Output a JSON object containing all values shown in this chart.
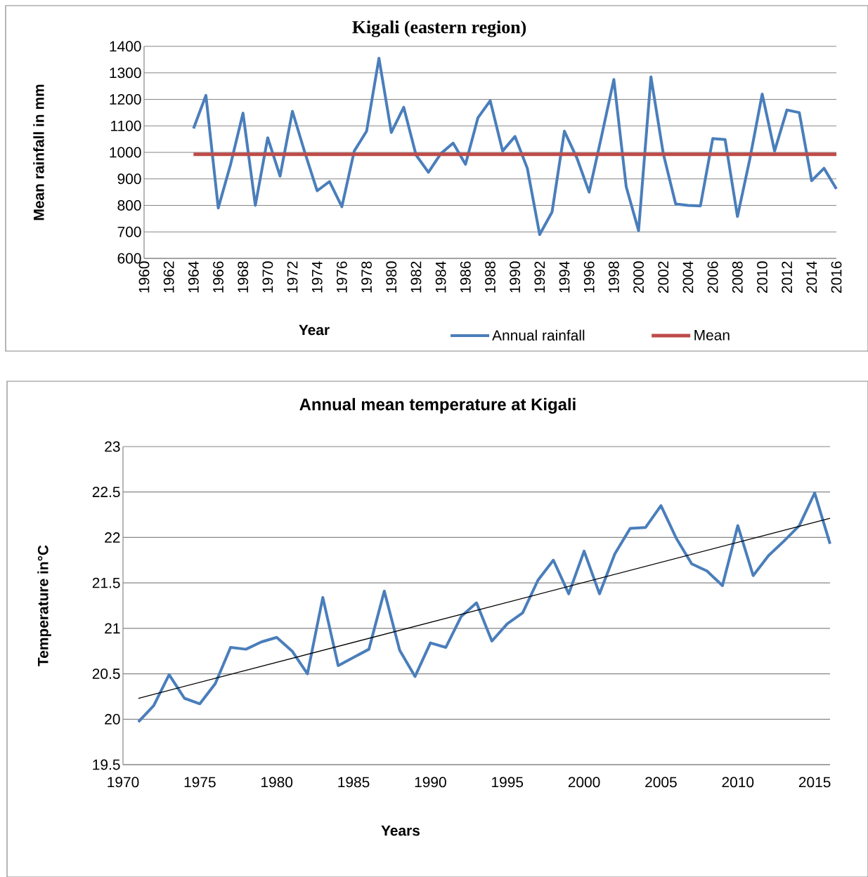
{
  "chart_data": [
    {
      "type": "line",
      "title": "Kigali (eastern region)",
      "xlabel": "Year",
      "ylabel": "Mean rainfall in mm",
      "categories": [
        "1960",
        null,
        "1962",
        null,
        "1964",
        null,
        "1966",
        null,
        "1968",
        null,
        "1970",
        null,
        "1972",
        null,
        "1974",
        null,
        "1976",
        null,
        "1978",
        null,
        "1980",
        null,
        "1982",
        null,
        "1984",
        null,
        "1986",
        null,
        "1988",
        null,
        "1990",
        null,
        "1992",
        null,
        "1994",
        null,
        "1996",
        null,
        "1998",
        null,
        "2000",
        null,
        "2002",
        null,
        "2004",
        null,
        "2006",
        null,
        "2008",
        null,
        "2010",
        null,
        "2012",
        null,
        "2014",
        null,
        "2016"
      ],
      "series": [
        {
          "name": "Annual rainfall",
          "color": "#4a7ebb",
          "values": [
            null,
            null,
            null,
            null,
            1090,
            1215,
            790,
            955,
            1148,
            800,
            1055,
            910,
            1155,
            1000,
            855,
            890,
            795,
            1005,
            1080,
            1355,
            1075,
            1170,
            990,
            925,
            995,
            1035,
            955,
            1130,
            1195,
            1005,
            1060,
            940,
            690,
            775,
            1080,
            980,
            850,
            1060,
            1275,
            870,
            705,
            1285,
            995,
            805,
            800,
            798,
            1052,
            1048,
            758,
            975,
            1220,
            1005,
            1160,
            1150,
            893,
            940,
            862
          ]
        },
        {
          "name": "Mean",
          "color": "#be4b48",
          "values": [
            null,
            null,
            null,
            null,
            993,
            993,
            993,
            993,
            993,
            993,
            993,
            993,
            993,
            993,
            993,
            993,
            993,
            993,
            993,
            993,
            993,
            993,
            993,
            993,
            993,
            993,
            993,
            993,
            993,
            993,
            993,
            993,
            993,
            993,
            993,
            993,
            993,
            993,
            993,
            993,
            993,
            993,
            993,
            993,
            993,
            993,
            993,
            993,
            993,
            993,
            993,
            993,
            993,
            993,
            993,
            993,
            993
          ]
        }
      ],
      "ylim": [
        600,
        1400
      ],
      "yticks": [
        600,
        700,
        800,
        900,
        1000,
        1100,
        1200,
        1300,
        1400
      ],
      "grid": "y",
      "legend": "bottom",
      "marker": "none"
    },
    {
      "type": "line",
      "title": "Annual mean temperature at Kigali",
      "xlabel": "Years",
      "ylabel": "Temperature in°C",
      "x": [
        1971,
        1972,
        1973,
        1974,
        1975,
        1976,
        1977,
        1978,
        1979,
        1980,
        1981,
        1982,
        1983,
        1984,
        1985,
        1986,
        1987,
        1988,
        1989,
        1990,
        1991,
        1992,
        1993,
        1994,
        1995,
        1996,
        1997,
        1998,
        1999,
        2000,
        2001,
        2002,
        2003,
        2004,
        2005,
        2006,
        2007,
        2008,
        2009,
        2010,
        2011,
        2012,
        2013,
        2014,
        2015,
        2016
      ],
      "series": [
        {
          "color": "#4a7ebb",
          "values": [
            19.97,
            20.15,
            20.49,
            20.23,
            20.17,
            20.39,
            20.79,
            20.77,
            20.85,
            20.9,
            20.75,
            20.5,
            21.34,
            20.59,
            20.68,
            20.77,
            21.41,
            20.76,
            20.47,
            20.84,
            20.79,
            21.13,
            21.28,
            20.86,
            21.05,
            21.17,
            21.53,
            21.75,
            21.38,
            21.85,
            21.38,
            21.82,
            22.1,
            22.11,
            22.35,
            21.99,
            21.71,
            21.63,
            21.47,
            22.13,
            21.58,
            21.8,
            21.96,
            22.13,
            22.49,
            21.93
          ]
        },
        {
          "color": "#000000",
          "x": [
            1971,
            2016
          ],
          "values": [
            20.23,
            22.21
          ]
        }
      ],
      "xlim": [
        1970,
        2016
      ],
      "xticks": [
        1970,
        1975,
        1980,
        1985,
        1990,
        1995,
        2000,
        2005,
        2010,
        2015
      ],
      "ylim": [
        19.5,
        23
      ],
      "yticks": [
        19.5,
        20,
        20.5,
        21,
        21.5,
        22,
        22.5,
        23
      ],
      "grid": "y",
      "marker": "none"
    }
  ]
}
